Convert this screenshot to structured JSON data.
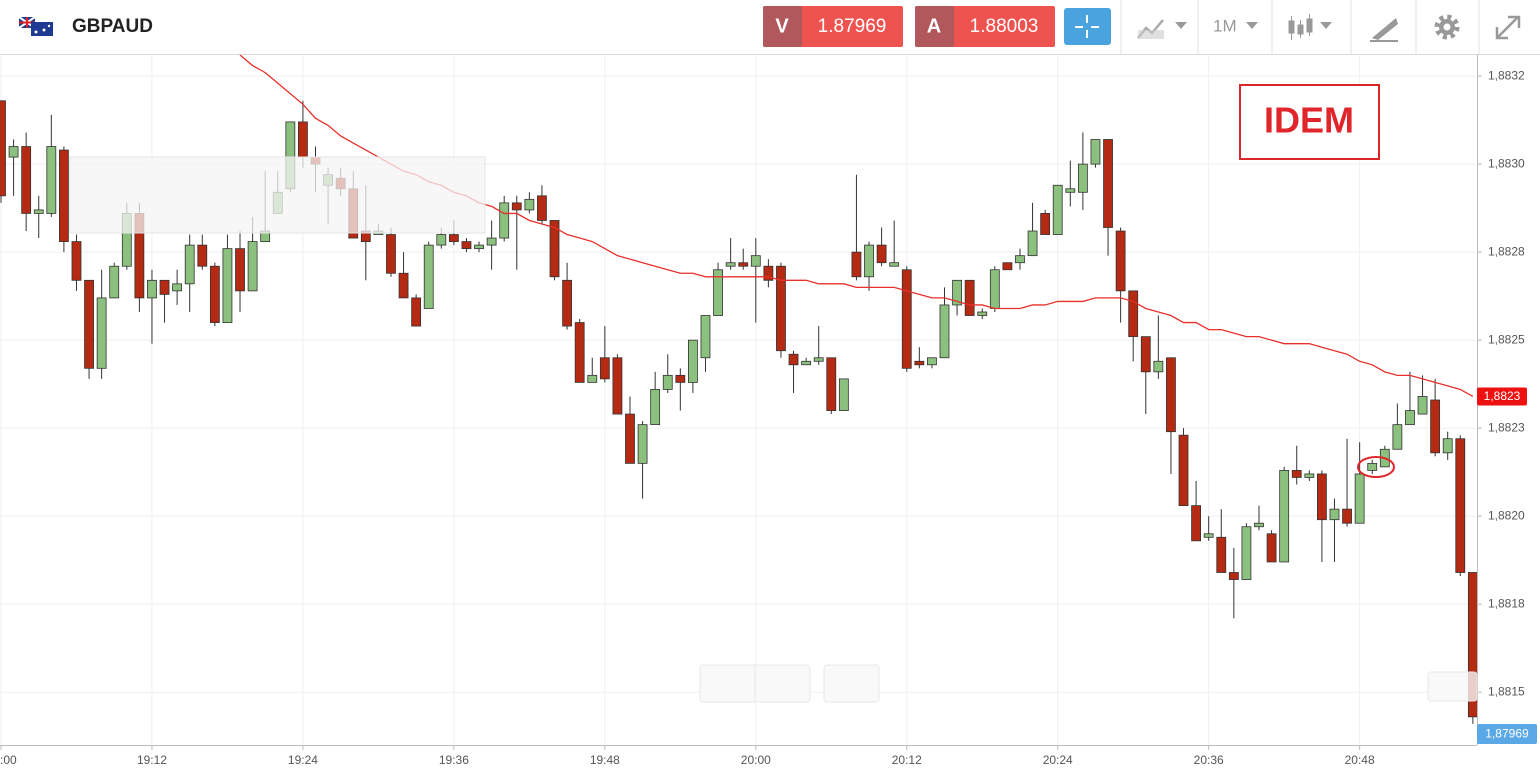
{
  "header": {
    "symbol": "GBPAUD",
    "bid_label": "V",
    "bid": "1.87969",
    "ask_label": "A",
    "ask": "1.88003",
    "timeframe": "1M"
  },
  "chart_data": {
    "type": "candlestick",
    "annotation": "IDEM",
    "up_color": "#8cc07e",
    "down_color": "#b52a12",
    "grid": true,
    "categories": [
      ":00",
      null,
      null,
      null,
      null,
      null,
      null,
      null,
      null,
      null,
      null,
      null,
      "19:12",
      null,
      null,
      null,
      null,
      null,
      null,
      null,
      null,
      null,
      null,
      null,
      "19:24",
      null,
      null,
      null,
      null,
      null,
      null,
      null,
      null,
      null,
      null,
      null,
      "19:36",
      null,
      null,
      null,
      null,
      null,
      null,
      null,
      null,
      null,
      null,
      null,
      "19:48",
      null,
      null,
      null,
      null,
      null,
      null,
      null,
      null,
      null,
      null,
      null,
      "20:00",
      null,
      null,
      null,
      null,
      null,
      null,
      null,
      null,
      null,
      null,
      null,
      "20:12",
      null,
      null,
      null,
      null,
      null,
      null,
      null,
      null,
      null,
      null,
      null,
      "20:24",
      null,
      null,
      null,
      null,
      null,
      null,
      null,
      null,
      null,
      null,
      null,
      "20:36",
      null,
      null,
      null,
      null,
      null,
      null,
      null,
      null,
      null,
      null,
      null,
      "20:48",
      null,
      null,
      null,
      null,
      null,
      null,
      null,
      null,
      null
    ],
    "open": [
      1.88318,
      1.88302,
      1.88305,
      1.88286,
      1.88286,
      1.88304,
      1.88278,
      1.88267,
      1.88242,
      1.88262,
      1.88271,
      1.88286,
      1.88262,
      1.88267,
      1.88264,
      1.88266,
      1.88277,
      1.88271,
      1.88255,
      1.88276,
      1.88264,
      1.88278,
      1.88286,
      1.88293,
      1.88312,
      1.88302,
      1.88294,
      1.88296,
      1.88293,
      1.88281,
      1.8828,
      1.8828,
      1.88269,
      1.88262,
      1.88259,
      1.88277,
      1.8828,
      1.88278,
      1.88276,
      1.88277,
      1.88279,
      1.88289,
      1.88287,
      1.88291,
      1.88284,
      1.88267,
      1.88255,
      1.88238,
      1.88245,
      1.88245,
      1.88229,
      1.88215,
      1.88226,
      1.88236,
      1.8824,
      1.88238,
      1.88245,
      1.88257,
      1.88271,
      1.88272,
      1.88271,
      1.88271,
      1.88271,
      1.88246,
      1.88243,
      1.88244,
      1.88245,
      1.8823,
      1.88275,
      1.88268,
      1.88277,
      1.88271,
      1.8827,
      1.88244,
      1.88243,
      1.88245,
      1.8826,
      1.88267,
      1.88257,
      1.88259,
      1.88272,
      1.88272,
      1.88274,
      1.88286,
      1.8828,
      1.88292,
      1.88292,
      1.883,
      1.88307,
      1.88281,
      1.88264,
      1.88251,
      1.88241,
      1.88245,
      1.88223,
      1.88203,
      1.88194,
      1.88194,
      1.88184,
      1.88182,
      1.88197,
      1.88195,
      1.88187,
      1.88213,
      1.88211,
      1.88212,
      1.88199,
      1.88202,
      1.88198,
      1.88213,
      1.88214,
      1.88219,
      1.88226,
      1.88229,
      1.88233,
      1.88218,
      1.88222,
      1.88184
    ],
    "high": [
      1.88318,
      1.88307,
      1.88309,
      1.88291,
      1.88314,
      1.88305,
      1.8828,
      1.88267,
      1.8827,
      1.88272,
      1.88289,
      1.88289,
      1.8827,
      1.88267,
      1.8827,
      1.8828,
      1.8828,
      1.88272,
      1.8828,
      1.88281,
      1.88285,
      1.88298,
      1.88298,
      1.88312,
      1.88318,
      1.88305,
      1.88299,
      1.88299,
      1.88298,
      1.88294,
      1.88283,
      1.88282,
      1.88275,
      1.88263,
      1.88278,
      1.88282,
      1.88284,
      1.88279,
      1.88278,
      1.88284,
      1.88291,
      1.88291,
      1.88292,
      1.88294,
      1.88284,
      1.88272,
      1.88256,
      1.88245,
      1.88254,
      1.88246,
      1.88234,
      1.88227,
      1.88241,
      1.88246,
      1.88242,
      1.8825,
      1.88257,
      1.88272,
      1.88279,
      1.88276,
      1.88279,
      1.88273,
      1.88272,
      1.88247,
      1.88245,
      1.88254,
      1.88245,
      1.88239,
      1.88297,
      1.88278,
      1.88282,
      1.88284,
      1.88271,
      1.88248,
      1.88245,
      1.88265,
      1.88267,
      1.88267,
      1.88259,
      1.88271,
      1.88272,
      1.88276,
      1.88289,
      1.88287,
      1.88294,
      1.88301,
      1.88309,
      1.88307,
      1.88307,
      1.88282,
      1.88264,
      1.88251,
      1.88257,
      1.88245,
      1.88225,
      1.8821,
      1.882,
      1.88202,
      1.88191,
      1.88198,
      1.88203,
      1.88196,
      1.88214,
      1.8822,
      1.88213,
      1.88213,
      1.88205,
      1.88222,
      1.88221,
      1.88216,
      1.8822,
      1.88232,
      1.88241,
      1.8824,
      1.88239,
      1.88224,
      1.88223,
      1.88184
    ],
    "low": [
      1.88289,
      1.88291,
      1.88281,
      1.88279,
      1.88285,
      1.88275,
      1.88264,
      1.88239,
      1.88239,
      1.88262,
      1.8827,
      1.88258,
      1.88249,
      1.88255,
      1.8826,
      1.88258,
      1.8827,
      1.88254,
      1.88255,
      1.88258,
      1.88264,
      1.88278,
      1.88286,
      1.88292,
      1.88299,
      1.88292,
      1.88283,
      1.88291,
      1.88279,
      1.88267,
      1.8828,
      1.88268,
      1.88262,
      1.88254,
      1.88259,
      1.88276,
      1.88277,
      1.88275,
      1.88275,
      1.8827,
      1.88278,
      1.8827,
      1.88286,
      1.88283,
      1.88267,
      1.88253,
      1.88238,
      1.88238,
      1.88238,
      1.88229,
      1.88215,
      1.88205,
      1.88226,
      1.88235,
      1.8823,
      1.88235,
      1.88241,
      1.88257,
      1.8827,
      1.8827,
      1.88255,
      1.88265,
      1.88245,
      1.88235,
      1.88243,
      1.88243,
      1.88229,
      1.8823,
      1.88267,
      1.88264,
      1.88271,
      1.88271,
      1.88241,
      1.88242,
      1.88242,
      1.88245,
      1.88257,
      1.88257,
      1.88256,
      1.88258,
      1.8827,
      1.8827,
      1.88274,
      1.8828,
      1.8828,
      1.88288,
      1.88287,
      1.88299,
      1.88274,
      1.88255,
      1.88244,
      1.88229,
      1.88239,
      1.88212,
      1.88203,
      1.88193,
      1.88193,
      1.88184,
      1.88171,
      1.88182,
      1.88196,
      1.88187,
      1.88187,
      1.88209,
      1.8821,
      1.88187,
      1.88187,
      1.88197,
      1.88198,
      1.88212,
      1.88214,
      1.88219,
      1.88226,
      1.88229,
      1.88217,
      1.88216,
      1.88183,
      1.88141
    ],
    "close": [
      1.88291,
      1.88305,
      1.88286,
      1.88287,
      1.88305,
      1.88278,
      1.88267,
      1.88242,
      1.88262,
      1.88271,
      1.88286,
      1.88262,
      1.88267,
      1.88263,
      1.88266,
      1.88277,
      1.88271,
      1.88255,
      1.88276,
      1.88264,
      1.88278,
      1.88281,
      1.88292,
      1.88312,
      1.88302,
      1.883,
      1.88297,
      1.88293,
      1.88279,
      1.88278,
      1.88281,
      1.88269,
      1.88262,
      1.88254,
      1.88277,
      1.8828,
      1.88278,
      1.88276,
      1.88277,
      1.88279,
      1.88289,
      1.88287,
      1.8829,
      1.88284,
      1.88268,
      1.88254,
      1.88238,
      1.8824,
      1.88239,
      1.88229,
      1.88215,
      1.88226,
      1.88236,
      1.8824,
      1.88238,
      1.8825,
      1.88257,
      1.8827,
      1.88272,
      1.88271,
      1.88274,
      1.88267,
      1.88247,
      1.88243,
      1.88244,
      1.88245,
      1.8823,
      1.88239,
      1.88268,
      1.88277,
      1.88272,
      1.88272,
      1.88242,
      1.88243,
      1.88245,
      1.8826,
      1.88267,
      1.88257,
      1.88258,
      1.8827,
      1.8827,
      1.88274,
      1.88281,
      1.8828,
      1.88294,
      1.88293,
      1.883,
      1.88307,
      1.88282,
      1.88264,
      1.88251,
      1.88241,
      1.88244,
      1.88224,
      1.88203,
      1.88193,
      1.88195,
      1.88184,
      1.88182,
      1.88197,
      1.88198,
      1.88187,
      1.88213,
      1.88211,
      1.88212,
      1.88199,
      1.88202,
      1.88198,
      1.88212,
      1.88215,
      1.88219,
      1.88226,
      1.8823,
      1.88234,
      1.88218,
      1.88222,
      1.88184,
      1.88143
    ],
    "ma": {
      "color": "#e8302c",
      "values": [
        null,
        null,
        null,
        null,
        null,
        null,
        null,
        null,
        null,
        null,
        null,
        null,
        null,
        null,
        null,
        null,
        null,
        null,
        null,
        1.88331,
        1.88328,
        1.88326,
        1.88323,
        1.8832,
        1.88317,
        1.88313,
        1.88311,
        1.88308,
        1.88306,
        1.88304,
        1.88302,
        1.883,
        1.88298,
        1.88297,
        1.88295,
        1.88294,
        1.88292,
        1.88291,
        1.88289,
        1.88288,
        1.88286,
        1.88286,
        1.88284,
        1.88283,
        1.88282,
        1.8828,
        1.88279,
        1.88278,
        1.88276,
        1.88274,
        1.88273,
        1.88272,
        1.88271,
        1.8827,
        1.88269,
        1.88269,
        1.88268,
        1.88268,
        1.88268,
        1.88268,
        1.88268,
        1.88268,
        1.88267,
        1.88267,
        1.88267,
        1.88266,
        1.88266,
        1.88266,
        1.88265,
        1.88265,
        1.88265,
        1.88265,
        1.88264,
        1.88263,
        1.88262,
        1.88262,
        1.88261,
        1.8826,
        1.8826,
        1.88259,
        1.88259,
        1.88259,
        1.8826,
        1.8826,
        1.88261,
        1.88261,
        1.88261,
        1.88262,
        1.88262,
        1.88262,
        1.88261,
        1.88259,
        1.88258,
        1.88257,
        1.88255,
        1.88255,
        1.88253,
        1.88253,
        1.88252,
        1.88251,
        1.88251,
        1.8825,
        1.88249,
        1.88249,
        1.88249,
        1.88248,
        1.88247,
        1.88246,
        1.88244,
        1.88243,
        1.88241,
        1.8824,
        1.8824,
        1.88239,
        1.88238,
        1.88237,
        1.88236,
        1.88234
      ],
      "label": "1,8823"
    },
    "price_label": "1,87969",
    "ylim": [
      1.88135,
      1.88331
    ],
    "yticks": [
      {
        "value": 1.88325,
        "label": "1,8832"
      },
      {
        "value": 1.883,
        "label": "1,8830"
      },
      {
        "value": 1.88275,
        "label": "1,8828"
      },
      {
        "value": 1.8825,
        "label": "1,8825"
      },
      {
        "value": 1.88225,
        "label": "1,8823"
      },
      {
        "value": 1.882,
        "label": "1,8820"
      },
      {
        "value": 1.88175,
        "label": "1,8818"
      },
      {
        "value": 1.8815,
        "label": "1,8815"
      }
    ]
  }
}
